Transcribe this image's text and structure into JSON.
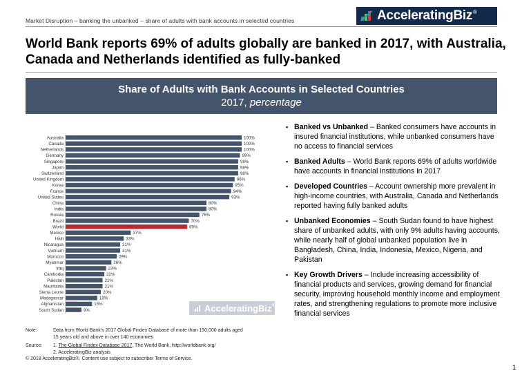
{
  "header": {
    "topline": "Market Disruption – banking the unbanked – share of adults with bank accounts in selected countries",
    "logo_text": "AcceleratingBiz",
    "logo_reg": "®"
  },
  "headline": "World Bank reports 69% of adults globally are banked in 2017, with Australia, Canada and Netherlands identified as fully-banked",
  "banner": {
    "title": "Share of Adults with Bank Accounts in Selected Countries",
    "subtitle_plain": "2017, ",
    "subtitle_italic": "percentage"
  },
  "watermark": {
    "text": "AcceleratingBiz",
    "reg": "®"
  },
  "chart_data": {
    "type": "bar",
    "orientation": "horizontal",
    "title": "Share of Adults with Bank Accounts in Selected Countries",
    "subtitle": "2017, percentage",
    "categories": [
      "Australia",
      "Canada",
      "Netherlands",
      "Germany",
      "Singapore",
      "Japan",
      "Switzerland",
      "United Kingdom",
      "Korea",
      "France",
      "United States",
      "China",
      "India",
      "Russia",
      "Brazil",
      "World",
      "Mexico",
      "Haiti",
      "Nicaragua",
      "Vietnam",
      "Morocco",
      "Myanmar",
      "Iraq",
      "Cambodia",
      "Pakistan",
      "Mauritania",
      "Sierra Leone",
      "Madagascar",
      "Afghanistan",
      "South Sudan"
    ],
    "values": [
      100,
      100,
      100,
      99,
      98,
      98,
      98,
      96,
      95,
      94,
      93,
      80,
      80,
      76,
      70,
      69,
      37,
      33,
      31,
      31,
      29,
      26,
      23,
      22,
      21,
      21,
      20,
      18,
      15,
      9
    ],
    "labels": [
      "100%",
      "100%",
      "100%",
      "99%",
      "98%",
      "98%",
      "98%",
      "96%",
      "95%",
      "94%",
      "93%",
      "80%",
      "80%",
      "76%",
      "70%",
      "69%",
      "37%",
      "33%",
      "31%",
      "31%",
      "29%",
      "26%",
      "23%",
      "22%",
      "21%",
      "21%",
      "20%",
      "18%",
      "15%",
      "9%"
    ],
    "highlight": "World",
    "colors": {
      "bar": "#44546a",
      "highlight": "#c0242e"
    },
    "xlim": [
      0,
      100
    ],
    "grid": false,
    "legend": "none"
  },
  "bullets": [
    {
      "title": "Banked vs Unbanked",
      "text": " – Banked consumers have accounts in insured financial institutions, while unbanked consumers have no access to financial services"
    },
    {
      "title": "Banked Adults",
      "text": " – World Bank reports 69% of adults worldwide have accounts in financial institutions in 2017"
    },
    {
      "title": "Developed Countries",
      "text": " – Account ownership more prevalent in high-income countries, with Australia, Canada and Netherlands reported having fully banked adults"
    },
    {
      "title": "Unbanked Economies",
      "text": " – South Sudan found to have highest share of unbanked adults, with only 9% adults having accounts, while nearly half of global unbanked population live in Bangladesh, China, India, Indonesia, Mexico, Nigeria, and Pakistan"
    },
    {
      "title": "Key Growth Drivers",
      "text": " – Include increasing accessibility of financial products and services, growing demand for financial security, improving household monthly income and employment rates, and strengthening regulations to promote more inclusive financial services"
    }
  ],
  "notes": {
    "note_label": "Note:",
    "note_text": "Data from World Bank's 2017 Global Findex Database of more than 150,000 adults aged 15 years old and above in over 140 economies",
    "source_label": "Source:",
    "source_1_prefix": "1. ",
    "source_1_link": "The Global Findex Database 2017",
    "source_1_suffix": ", The World Bank, http://worldbank.org/",
    "source_2": "2. AcceleratingBiz analysis"
  },
  "footer": "© 2018 AcceleratingBiz®. Content use subject to subscriber Terms of Service.",
  "page_number": "1"
}
